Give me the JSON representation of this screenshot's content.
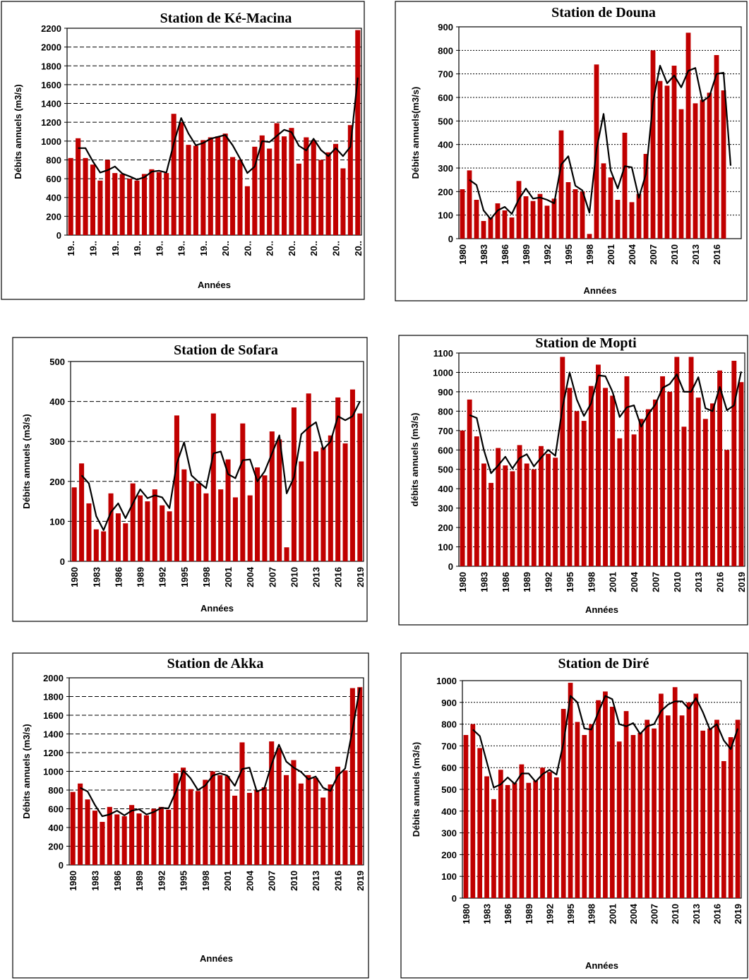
{
  "chart_data": [
    {
      "type": "bar",
      "title": "Station de Ké-Macina",
      "ylabel": "Débits annuels (m3/s)",
      "xlabel": "Années",
      "categories": [
        "19..",
        null,
        null,
        "19..",
        null,
        null,
        "19..",
        null,
        null,
        "19..",
        null,
        null,
        "19..",
        null,
        null,
        "19..",
        null,
        null,
        "19..",
        null,
        null,
        "20..",
        null,
        null,
        "20..",
        null,
        null,
        "20..",
        null,
        null,
        "20..",
        null,
        null,
        "20..",
        null,
        null,
        "20..",
        null,
        null,
        "20.."
      ],
      "series": [
        {
          "type": "bar",
          "color": "#c00000",
          "values": [
            820,
            1030,
            820,
            750,
            580,
            800,
            660,
            650,
            600,
            580,
            650,
            700,
            670,
            660,
            1290,
            1200,
            960,
            950,
            1010,
            1040,
            1050,
            1080,
            830,
            800,
            520,
            940,
            1060,
            920,
            1190,
            1050,
            1140,
            760,
            1040,
            1010,
            800,
            880,
            970,
            710,
            1170,
            2180
          ]
        },
        {
          "type": "line",
          "color": "#000000",
          "values": [
            null,
            925,
            925,
            785,
            665,
            690,
            730,
            655,
            625,
            590,
            615,
            675,
            685,
            665,
            975,
            1245,
            1080,
            955,
            980,
            1025,
            1045,
            1065,
            955,
            815,
            660,
            730,
            1000,
            990,
            1055,
            1120,
            1095,
            950,
            900,
            1025,
            905,
            840,
            925,
            840,
            940,
            1675
          ]
        }
      ],
      "ylim": [
        0,
        2200
      ],
      "yticks": [
        0,
        200,
        400,
        600,
        800,
        1000,
        1200,
        1400,
        1600,
        1800,
        2000,
        2200
      ],
      "grid": "dashed"
    },
    {
      "type": "bar",
      "title": "Station de Douna",
      "ylabel": "Débits annuels(m3/s)",
      "xlabel": "Années",
      "categories": [
        "1980",
        null,
        null,
        "1983",
        null,
        null,
        "1986",
        null,
        null,
        "1989",
        null,
        null,
        "1992",
        null,
        null,
        "1995",
        null,
        null,
        "1998",
        null,
        null,
        "2001",
        null,
        null,
        "2004",
        null,
        null,
        "2007",
        null,
        null,
        "2010",
        null,
        null,
        "2013",
        null,
        null,
        "2016",
        null,
        null,
        null
      ],
      "series": [
        {
          "type": "bar",
          "color": "#c00000",
          "values": [
            210,
            290,
            165,
            75,
            90,
            150,
            120,
            90,
            245,
            180,
            160,
            190,
            140,
            170,
            460,
            240,
            210,
            200,
            20,
            740,
            320,
            260,
            165,
            450,
            155,
            190,
            360,
            800,
            670,
            650,
            735,
            550,
            875,
            575,
            590,
            620,
            780,
            630,
            null,
            null
          ]
        },
        {
          "type": "line",
          "color": "#000000",
          "values": [
            null,
            250,
            228,
            120,
            83,
            120,
            135,
            105,
            168,
            213,
            170,
            175,
            165,
            150,
            315,
            350,
            225,
            205,
            110,
            380,
            530,
            290,
            213,
            308,
            303,
            173,
            275,
            580,
            735,
            660,
            693,
            643,
            713,
            725,
            583,
            605,
            700,
            705,
            310,
            null
          ]
        }
      ],
      "ylim": [
        0,
        900
      ],
      "yticks": [
        0,
        100,
        200,
        300,
        400,
        500,
        600,
        700,
        800,
        900
      ],
      "grid": "dotted"
    },
    {
      "type": "bar",
      "title": "Station de Sofara",
      "ylabel": "Débits annuels (m3/s)",
      "xlabel": "Années",
      "categories": [
        "1980",
        null,
        null,
        "1983",
        null,
        null,
        "1986",
        null,
        null,
        "1989",
        null,
        null,
        "1992",
        null,
        null,
        "1995",
        null,
        null,
        "1998",
        null,
        null,
        "2001",
        null,
        null,
        "2004",
        null,
        null,
        "2007",
        null,
        null,
        "2010",
        null,
        null,
        "2013",
        null,
        null,
        "2016",
        null,
        null,
        "2019"
      ],
      "series": [
        {
          "type": "bar",
          "color": "#c00000",
          "values": [
            185,
            245,
            145,
            80,
            75,
            170,
            120,
            95,
            195,
            165,
            150,
            180,
            140,
            125,
            365,
            230,
            200,
            195,
            170,
            370,
            180,
            255,
            160,
            345,
            165,
            235,
            215,
            325,
            305,
            35,
            385,
            250,
            420,
            275,
            285,
            315,
            410,
            295,
            430,
            370
          ]
        },
        {
          "type": "line",
          "color": "#000000",
          "values": [
            null,
            215,
            195,
            113,
            78,
            123,
            145,
            108,
            145,
            180,
            158,
            165,
            160,
            133,
            245,
            298,
            215,
            198,
            183,
            270,
            275,
            218,
            208,
            253,
            255,
            200,
            225,
            270,
            315,
            170,
            210,
            318,
            335,
            348,
            280,
            300,
            363,
            353,
            363,
            400
          ]
        }
      ],
      "ylim": [
        0,
        500
      ],
      "yticks": [
        0,
        100,
        200,
        300,
        400,
        500
      ],
      "grid": "dashed"
    },
    {
      "type": "bar",
      "title": "Station de Mopti",
      "ylabel": "débits annuels (m3/s)",
      "xlabel": "Années",
      "categories": [
        "1980",
        null,
        null,
        "1983",
        null,
        null,
        "1986",
        null,
        null,
        "1989",
        null,
        null,
        "1992",
        null,
        null,
        "1995",
        null,
        null,
        "1998",
        null,
        null,
        "2001",
        null,
        null,
        "2004",
        null,
        null,
        "2007",
        null,
        null,
        "2010",
        null,
        null,
        "2013",
        null,
        null,
        "2016",
        null,
        null,
        "2019"
      ],
      "series": [
        {
          "type": "bar",
          "color": "#c00000",
          "values": [
            700,
            860,
            670,
            530,
            430,
            610,
            520,
            490,
            625,
            530,
            500,
            620,
            580,
            560,
            1080,
            920,
            800,
            750,
            930,
            1040,
            920,
            880,
            660,
            980,
            680,
            760,
            810,
            860,
            980,
            900,
            1080,
            720,
            1080,
            870,
            760,
            840,
            1010,
            600,
            1060,
            950
          ]
        },
        {
          "type": "line",
          "color": "#000000",
          "values": [
            null,
            780,
            765,
            600,
            480,
            520,
            565,
            505,
            558,
            578,
            515,
            560,
            600,
            570,
            820,
            1000,
            860,
            775,
            840,
            985,
            980,
            900,
            770,
            820,
            830,
            720,
            785,
            835,
            920,
            940,
            990,
            900,
            900,
            975,
            815,
            800,
            925,
            805,
            830,
            1005
          ]
        }
      ],
      "ylim": [
        0,
        1100
      ],
      "yticks": [
        0,
        100,
        200,
        300,
        400,
        500,
        600,
        700,
        800,
        900,
        1000,
        1100
      ],
      "grid": "dotted"
    },
    {
      "type": "bar",
      "title": "Station de Akka",
      "ylabel": "Débits annuels (m3/s)",
      "xlabel": "Années",
      "categories": [
        "1980",
        null,
        null,
        "1983",
        null,
        null,
        "1986",
        null,
        null,
        "1989",
        null,
        null,
        "1992",
        null,
        null,
        "1995",
        null,
        null,
        "1998",
        null,
        null,
        "2001",
        null,
        null,
        "2004",
        null,
        null,
        "2007",
        null,
        null,
        "2010",
        null,
        null,
        "2013",
        null,
        null,
        "2016",
        null,
        null,
        "2019"
      ],
      "series": [
        {
          "type": "bar",
          "color": "#c00000",
          "values": [
            780,
            870,
            700,
            580,
            460,
            620,
            540,
            520,
            640,
            550,
            530,
            600,
            620,
            590,
            980,
            1040,
            810,
            790,
            910,
            1000,
            960,
            950,
            740,
            1310,
            770,
            800,
            830,
            1320,
            1250,
            960,
            1120,
            870,
            960,
            930,
            720,
            860,
            1050,
            1010,
            1890,
            1900
          ]
        },
        {
          "type": "line",
          "color": "#000000",
          "values": [
            null,
            825,
            785,
            640,
            520,
            540,
            580,
            530,
            580,
            595,
            540,
            565,
            610,
            605,
            785,
            1010,
            925,
            800,
            850,
            955,
            980,
            955,
            845,
            1025,
            1040,
            785,
            815,
            1075,
            1285,
            1105,
            1040,
            995,
            915,
            945,
            825,
            790,
            955,
            1030,
            1450,
            1895
          ]
        }
      ],
      "ylim": [
        0,
        2000
      ],
      "yticks": [
        0,
        200,
        400,
        600,
        800,
        1000,
        1200,
        1400,
        1600,
        1800,
        2000
      ],
      "grid": "dashed"
    },
    {
      "type": "bar",
      "title": "Station de Diré",
      "ylabel": "Débits annuels (m3/s)",
      "xlabel": "Années",
      "categories": [
        "1980",
        null,
        null,
        "1983",
        null,
        null,
        "1986",
        null,
        null,
        "1989",
        null,
        null,
        "1992",
        null,
        null,
        "1995",
        null,
        null,
        "1998",
        null,
        null,
        "2001",
        null,
        null,
        "2004",
        null,
        null,
        "2007",
        null,
        null,
        "2010",
        null,
        null,
        "2013",
        null,
        null,
        "2016",
        null,
        null,
        "2019"
      ],
      "series": [
        {
          "type": "bar",
          "color": "#c00000",
          "values": [
            750,
            800,
            690,
            560,
            455,
            590,
            520,
            530,
            615,
            530,
            540,
            600,
            580,
            555,
            870,
            990,
            810,
            750,
            800,
            910,
            950,
            880,
            720,
            860,
            750,
            760,
            820,
            780,
            940,
            840,
            970,
            840,
            900,
            940,
            770,
            780,
            820,
            630,
            740,
            820
          ]
        },
        {
          "type": "line",
          "color": "#000000",
          "values": [
            null,
            775,
            745,
            625,
            508,
            523,
            555,
            525,
            573,
            573,
            535,
            570,
            590,
            568,
            713,
            930,
            900,
            780,
            775,
            855,
            930,
            915,
            800,
            790,
            805,
            755,
            790,
            800,
            860,
            890,
            905,
            905,
            870,
            920,
            855,
            775,
            800,
            725,
            685,
            780
          ]
        }
      ],
      "ylim": [
        0,
        1000
      ],
      "yticks": [
        0,
        100,
        200,
        300,
        400,
        500,
        600,
        700,
        800,
        900,
        1000
      ],
      "grid": "dotted"
    }
  ]
}
